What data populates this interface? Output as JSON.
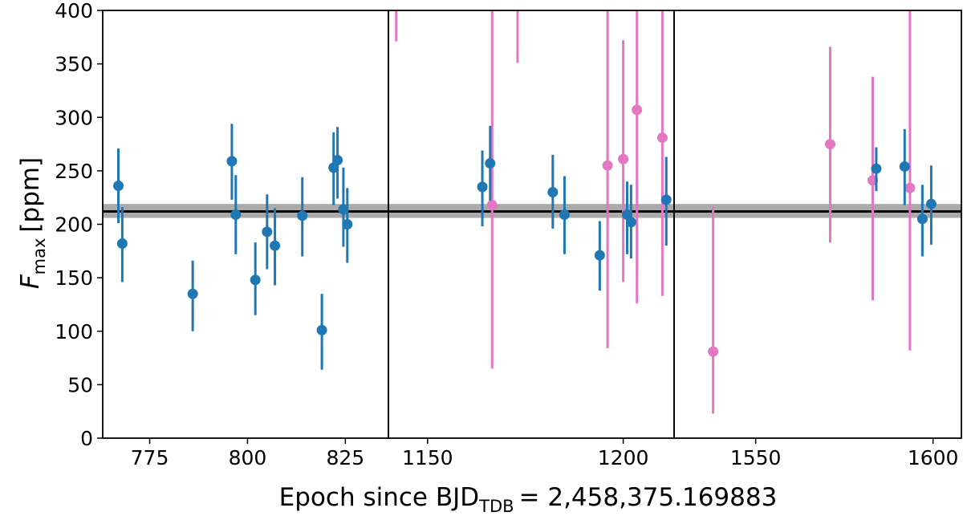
{
  "chart_data": {
    "type": "scatter",
    "ylabel_main": "F",
    "ylabel_sub": "max",
    "ylabel_unit": "[ppm]",
    "xlabel_main": "Epoch since BJD",
    "xlabel_sub": "TDB",
    "xlabel_rest": "= 2,458,375.169883",
    "ylim": [
      0,
      400
    ],
    "yticks": [
      0,
      50,
      100,
      150,
      200,
      250,
      300,
      350,
      400
    ],
    "reference": {
      "value": 212,
      "band": [
        206,
        219
      ],
      "line_color": "#000000",
      "band_color": "#aaaaaa"
    },
    "colors": {
      "series_a": "#1f77b4",
      "series_b": "#e377c2"
    },
    "panels": [
      {
        "xlim": [
          763,
          836
        ],
        "xticks": [
          775,
          800,
          825
        ],
        "points": [
          {
            "x": 767,
            "y": 236,
            "lo": 201,
            "hi": 271,
            "s": "a"
          },
          {
            "x": 768,
            "y": 182,
            "lo": 146,
            "hi": 216,
            "s": "a"
          },
          {
            "x": 786,
            "y": 135,
            "lo": 100,
            "hi": 166,
            "s": "a"
          },
          {
            "x": 796,
            "y": 259,
            "lo": 223,
            "hi": 294,
            "s": "a"
          },
          {
            "x": 797,
            "y": 209,
            "lo": 172,
            "hi": 246,
            "s": "a"
          },
          {
            "x": 802,
            "y": 148,
            "lo": 115,
            "hi": 183,
            "s": "a"
          },
          {
            "x": 805,
            "y": 193,
            "lo": 158,
            "hi": 228,
            "s": "a"
          },
          {
            "x": 807,
            "y": 180,
            "lo": 143,
            "hi": 215,
            "s": "a"
          },
          {
            "x": 814,
            "y": 208,
            "lo": 170,
            "hi": 244,
            "s": "a"
          },
          {
            "x": 819,
            "y": 101,
            "lo": 64,
            "hi": 135,
            "s": "a"
          },
          {
            "x": 822,
            "y": 253,
            "lo": 218,
            "hi": 286,
            "s": "a"
          },
          {
            "x": 823,
            "y": 260,
            "lo": 224,
            "hi": 291,
            "s": "a"
          },
          {
            "x": 824.5,
            "y": 214,
            "lo": 179,
            "hi": 253,
            "s": "a"
          },
          {
            "x": 825.5,
            "y": 200,
            "lo": 164,
            "hi": 234,
            "s": "a"
          }
        ]
      },
      {
        "xlim": [
          1140,
          1213
        ],
        "xticks": [
          1150,
          1200
        ],
        "points": [
          {
            "x": 1142,
            "y": null,
            "lo": 371,
            "hi": 400,
            "s": "b"
          },
          {
            "x": 1164,
            "y": 235,
            "lo": 198,
            "hi": 269,
            "s": "a"
          },
          {
            "x": 1166,
            "y": 257,
            "lo": 222,
            "hi": 292,
            "s": "a"
          },
          {
            "x": 1166.5,
            "y": 218,
            "lo": 65,
            "hi": 400,
            "s": "b"
          },
          {
            "x": 1173,
            "y": null,
            "lo": 351,
            "hi": 400,
            "s": "b"
          },
          {
            "x": 1182,
            "y": 230,
            "lo": 196,
            "hi": 265,
            "s": "a"
          },
          {
            "x": 1185,
            "y": 209,
            "lo": 172,
            "hi": 245,
            "s": "a"
          },
          {
            "x": 1194,
            "y": 171,
            "lo": 138,
            "hi": 203,
            "s": "a"
          },
          {
            "x": 1196,
            "y": 255,
            "lo": 84,
            "hi": 400,
            "s": "b"
          },
          {
            "x": 1200,
            "y": 261,
            "lo": 146,
            "hi": 372,
            "s": "b"
          },
          {
            "x": 1201,
            "y": 209,
            "lo": 172,
            "hi": 240,
            "s": "a"
          },
          {
            "x": 1202,
            "y": 202,
            "lo": 168,
            "hi": 237,
            "s": "a"
          },
          {
            "x": 1203.5,
            "y": 307,
            "lo": 126,
            "hi": 400,
            "s": "b"
          },
          {
            "x": 1210,
            "y": 281,
            "lo": 133,
            "hi": 400,
            "s": "b"
          },
          {
            "x": 1211,
            "y": 223,
            "lo": 180,
            "hi": 263,
            "s": "a"
          }
        ]
      },
      {
        "xlim": [
          1527,
          1608
        ],
        "xticks": [
          1550,
          1600
        ],
        "points": [
          {
            "x": 1538,
            "y": 81,
            "lo": 23,
            "hi": 217,
            "s": "b"
          },
          {
            "x": 1571,
            "y": 275,
            "lo": 183,
            "hi": 366,
            "s": "b"
          },
          {
            "x": 1583,
            "y": 241,
            "lo": 129,
            "hi": 338,
            "s": "b"
          },
          {
            "x": 1584,
            "y": 252,
            "lo": 231,
            "hi": 272,
            "s": "a"
          },
          {
            "x": 1592,
            "y": 254,
            "lo": 218,
            "hi": 289,
            "s": "a"
          },
          {
            "x": 1593.5,
            "y": 234,
            "lo": 82,
            "hi": 400,
            "s": "b"
          },
          {
            "x": 1597,
            "y": 205,
            "lo": 170,
            "hi": 237,
            "s": "a"
          },
          {
            "x": 1599.5,
            "y": 219,
            "lo": 181,
            "hi": 255,
            "s": "a"
          }
        ]
      }
    ]
  }
}
